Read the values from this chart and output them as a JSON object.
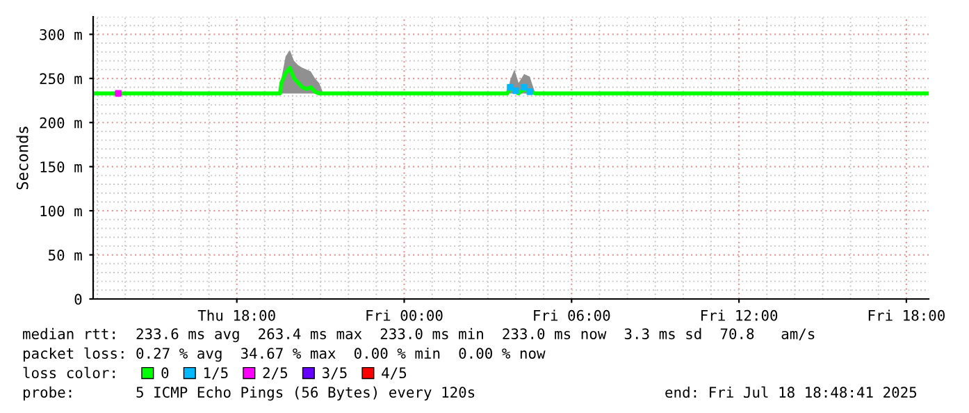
{
  "chart_data": {
    "type": "line",
    "ylabel": "Seconds",
    "legend_title": "loss color:",
    "legend": "bottom",
    "grid": true,
    "xlim": [
      "2025-07-17T12:51",
      "2025-07-18T18:48"
    ],
    "xticks": [
      {
        "value": "2025-07-17T18:00",
        "label": "Thu 18:00"
      },
      {
        "value": "2025-07-18T00:00",
        "label": "Fri 00:00"
      },
      {
        "value": "2025-07-18T06:00",
        "label": "Fri 06:00"
      },
      {
        "value": "2025-07-18T12:00",
        "label": "Fri 12:00"
      },
      {
        "value": "2025-07-18T18:00",
        "label": "Fri 18:00"
      }
    ],
    "ylim": [
      0,
      320
    ],
    "yticks": [
      0,
      {
        "value": 50,
        "label": "50 m"
      },
      {
        "value": 100,
        "label": "100 m"
      },
      {
        "value": 150,
        "label": "150 m"
      },
      {
        "value": 200,
        "label": "200 m"
      },
      {
        "value": 250,
        "label": "250 m"
      },
      {
        "value": 300,
        "label": "300 m"
      }
    ],
    "series": [
      {
        "name": "0",
        "color": "#00ff00",
        "x": [
          "2025-07-17T12:51",
          "2025-07-17T19:33",
          "2025-07-17T19:36",
          "2025-07-17T19:45",
          "2025-07-17T19:54",
          "2025-07-17T20:03",
          "2025-07-17T20:12",
          "2025-07-17T20:21",
          "2025-07-17T20:30",
          "2025-07-17T20:39",
          "2025-07-17T20:48",
          "2025-07-17T20:57",
          "2025-07-17T21:06",
          "2025-07-18T03:42",
          "2025-07-18T03:48",
          "2025-07-18T03:57",
          "2025-07-18T04:06",
          "2025-07-18T04:18",
          "2025-07-18T04:30",
          "2025-07-18T04:42",
          "2025-07-18T18:48"
        ],
        "values": [
          233,
          233,
          245,
          256,
          262,
          250,
          245,
          240,
          238,
          240,
          235,
          233,
          233,
          233,
          240,
          236,
          233,
          238,
          235,
          233,
          233
        ],
        "lower": [
          233,
          233,
          233,
          233,
          233,
          233,
          233,
          233,
          233,
          233,
          233,
          233,
          233,
          233,
          233,
          233,
          233,
          233,
          233,
          233,
          233
        ],
        "upper": [
          233,
          233,
          250,
          275,
          282,
          270,
          265,
          262,
          260,
          258,
          250,
          245,
          233,
          233,
          248,
          260,
          245,
          255,
          252,
          233,
          233
        ]
      },
      {
        "name": "1/5",
        "color": "#00b8ff",
        "type": "scatter",
        "marker": "square",
        "x": [
          "2025-07-18T03:48",
          "2025-07-18T04:00",
          "2025-07-18T04:18",
          "2025-07-18T04:30"
        ],
        "values": [
          240,
          236,
          240,
          235
        ]
      },
      {
        "name": "2/5",
        "color": "#ff00ff",
        "type": "scatter",
        "marker": "square",
        "x": [
          "2025-07-17T13:45"
        ],
        "values": [
          233
        ]
      },
      {
        "name": "3/5",
        "color": "#6600ff",
        "type": "scatter",
        "marker": "square"
      },
      {
        "name": "4/5",
        "color": "#ff0000",
        "type": "scatter",
        "marker": "square"
      }
    ],
    "annotations": [
      "median rtt:  233.6 ms avg  263.4 ms max  233.0 ms min  233.0 ms now  3.3 ms sd  70.8   am/s",
      "packet loss: 0.27 % avg  34.67 % max  0.00 % min  0.00 % now",
      "probe:       5 ICMP Echo Pings (56 Bytes) every 120s",
      "end: Fri Jul 18 18:48:41 2025"
    ]
  }
}
